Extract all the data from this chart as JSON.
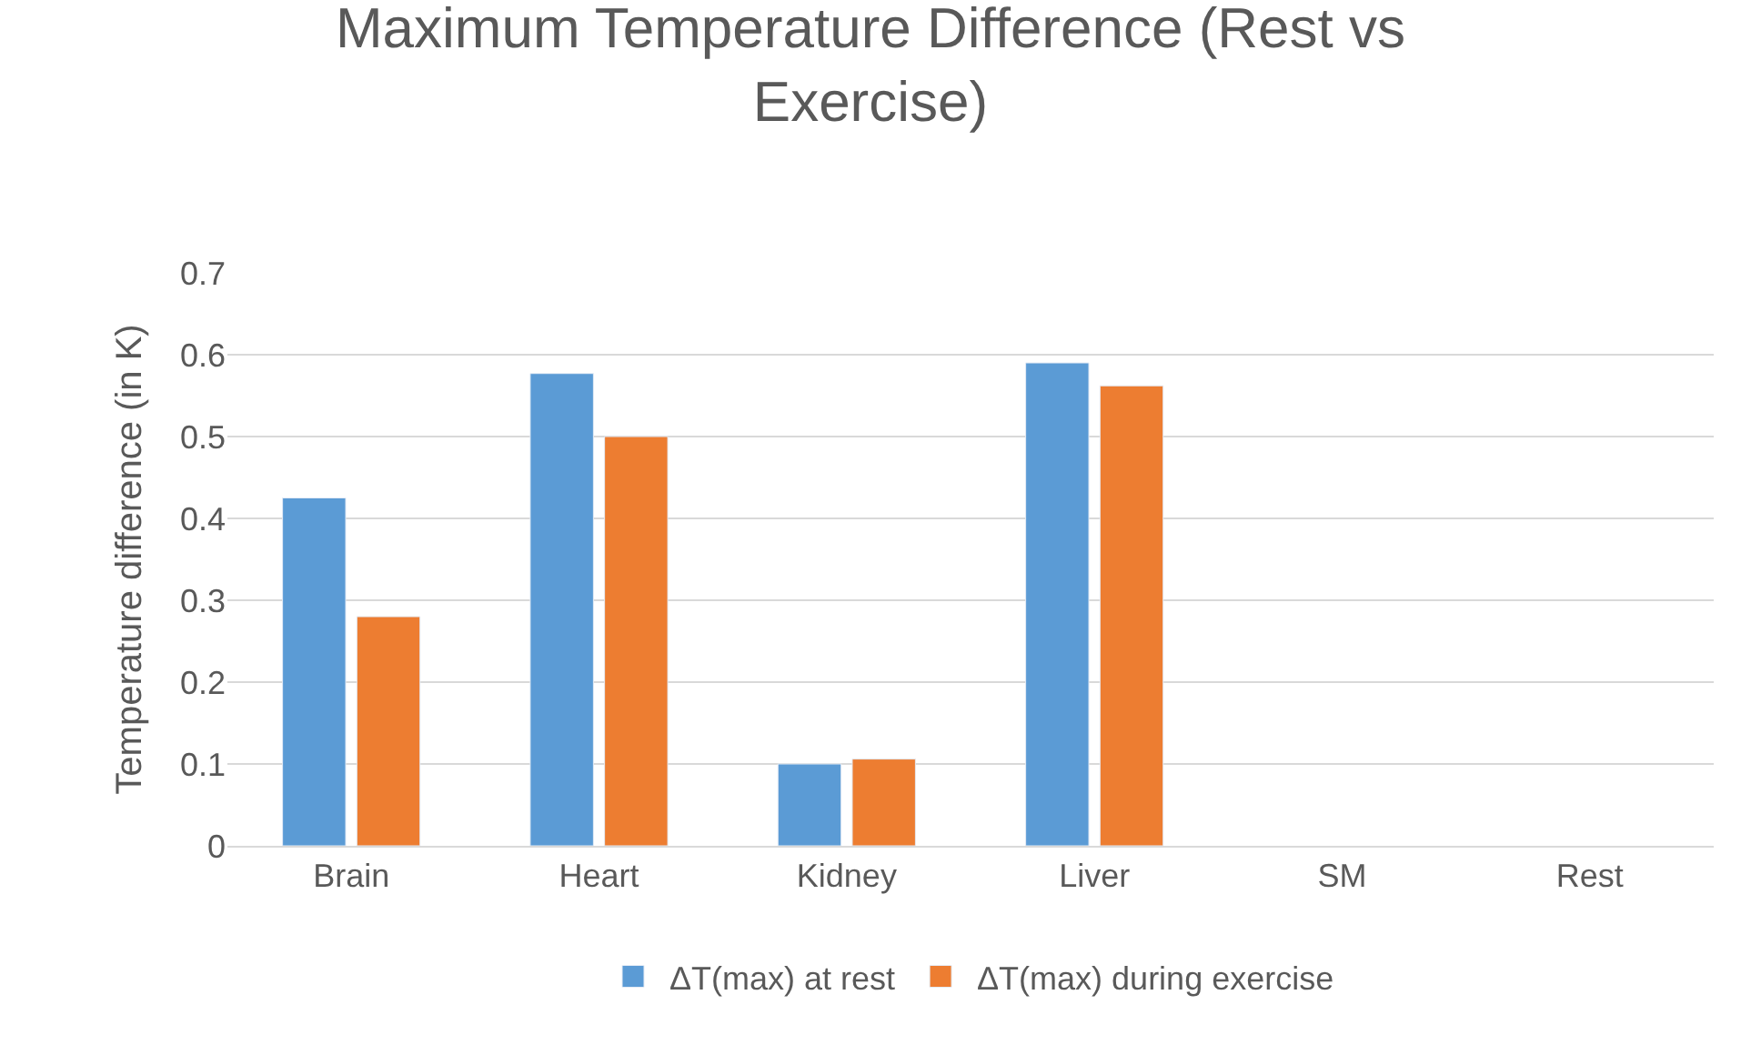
{
  "chart_data": {
    "type": "bar",
    "title": "Maximum Temperature Difference (Rest vs Exercise)",
    "ylabel": "Temperature difference (in K)",
    "categories": [
      "Brain",
      "Heart",
      "Kidney",
      "Liver",
      "SM",
      "Rest"
    ],
    "series": [
      {
        "name": "ΔT(max) at rest",
        "color": "#5b9bd5",
        "values": [
          0.425,
          0.577,
          0.1,
          0.59,
          null,
          null
        ]
      },
      {
        "name": "ΔT(max) during exercise",
        "color": "#ed7d31",
        "values": [
          0.28,
          0.5,
          0.106,
          0.562,
          null,
          null
        ]
      }
    ],
    "ylim": [
      0,
      0.7
    ],
    "yticks": [
      {
        "value": 0,
        "label": "0"
      },
      0.1,
      0.2,
      0.3,
      0.4,
      0.5,
      0.6,
      0.7
    ],
    "grid": "y",
    "legend": "bottom"
  }
}
